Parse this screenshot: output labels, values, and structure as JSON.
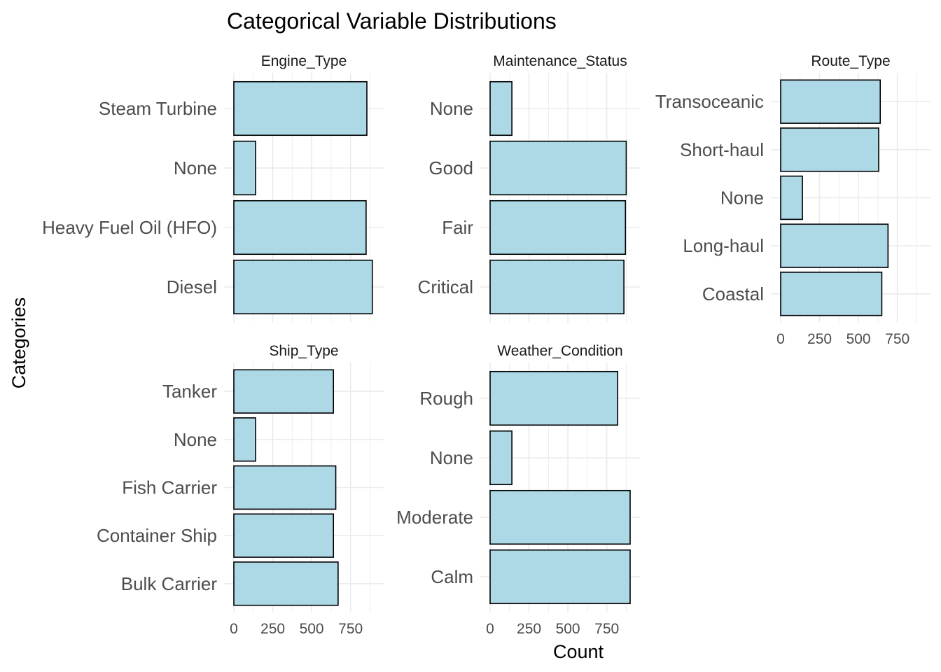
{
  "chart_data": {
    "type": "bar",
    "orientation": "horizontal",
    "title": "Categorical Variable Distributions",
    "xlabel": "Count",
    "ylabel": "Categories",
    "bar_fill": "#add8e6",
    "bar_stroke": "#000000",
    "grid_color": "#ebebeb",
    "xlim": [
      0,
      900
    ],
    "x_ticks": [
      0,
      250,
      500,
      750
    ],
    "panels": [
      {
        "name": "Engine_Type",
        "categories": [
          "Diesel",
          "Heavy Fuel Oil (HFO)",
          "None",
          "Steam Turbine"
        ],
        "values": [
          890,
          850,
          140,
          855
        ]
      },
      {
        "name": "Maintenance_Status",
        "categories": [
          "Critical",
          "Fair",
          "Good",
          "None"
        ],
        "values": [
          860,
          870,
          875,
          140
        ]
      },
      {
        "name": "Route_Type",
        "categories": [
          "Coastal",
          "Long-haul",
          "None",
          "Short-haul",
          "Transoceanic"
        ],
        "values": [
          650,
          690,
          140,
          630,
          640
        ]
      },
      {
        "name": "Ship_Type",
        "categories": [
          "Bulk Carrier",
          "Container Ship",
          "Fish Carrier",
          "None",
          "Tanker"
        ],
        "values": [
          670,
          640,
          655,
          140,
          640
        ]
      },
      {
        "name": "Weather_Condition",
        "categories": [
          "Calm",
          "Moderate",
          "None",
          "Rough"
        ],
        "values": [
          900,
          900,
          140,
          820
        ]
      }
    ]
  }
}
